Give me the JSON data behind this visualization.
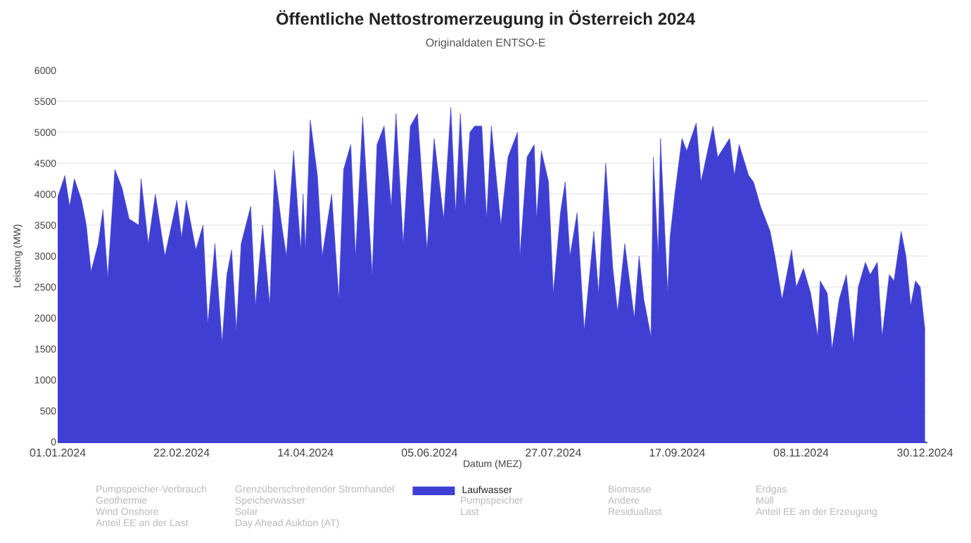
{
  "chart_data": {
    "type": "area",
    "title": "Öffentliche Nettostromerzeugung in Österreich 2024",
    "subtitle": "Originaldaten ENTSO-E",
    "xlabel": "Datum (MEZ)",
    "ylabel": "Leistung (MW)",
    "xlim": [
      "2024-01-01",
      "2024-12-31"
    ],
    "xticks": [
      {
        "value": "2024-01-01",
        "label": "01.01.2024"
      },
      {
        "value": "2024-02-22",
        "label": "22.02.2024"
      },
      {
        "value": "2024-04-14",
        "label": "14.04.2024"
      },
      {
        "value": "2024-06-05",
        "label": "05.06.2024"
      },
      {
        "value": "2024-07-27",
        "label": "27.07.2024"
      },
      {
        "value": "2024-09-17",
        "label": "17.09.2024"
      },
      {
        "value": "2024-11-08",
        "label": "08.11.2024"
      },
      {
        "value": "2024-12-30",
        "label": "30.12.2024"
      }
    ],
    "ylim": [
      0,
      6000
    ],
    "yticks": [
      0,
      500,
      1000,
      1500,
      2000,
      2500,
      3000,
      3500,
      4000,
      4500,
      5000,
      5500,
      6000
    ],
    "grid": "y",
    "legend": "bottom",
    "annotations": [
      "Pumpspeicher-Verbrauch",
      "Grenzüberschreitender Stromhandel",
      "Biomasse",
      "Erdgas",
      "Geothermie",
      "Speicherwasser",
      "Pumpspeicher",
      "Andere",
      "Müll",
      "Wind Onshore",
      "Solar",
      "Last",
      "Residuallast",
      "Anteil EE an der Erzeugung",
      "Anteil EE an der Last",
      "Day Ahead Auktion (AT)"
    ],
    "series": [
      {
        "name": "Laufwasser",
        "color": "#3f3fd4",
        "x": [
          "2024-01-01",
          "2024-01-04",
          "2024-01-06",
          "2024-01-08",
          "2024-01-11",
          "2024-01-13",
          "2024-01-15",
          "2024-01-18",
          "2024-01-20",
          "2024-01-22",
          "2024-01-25",
          "2024-01-28",
          "2024-01-31",
          "2024-02-04",
          "2024-02-05",
          "2024-02-08",
          "2024-02-11",
          "2024-02-15",
          "2024-02-20",
          "2024-02-22",
          "2024-02-24",
          "2024-02-28",
          "2024-03-02",
          "2024-03-04",
          "2024-03-07",
          "2024-03-10",
          "2024-03-12",
          "2024-03-14",
          "2024-03-16",
          "2024-03-18",
          "2024-03-22",
          "2024-03-24",
          "2024-03-27",
          "2024-03-30",
          "2024-04-01",
          "2024-04-04",
          "2024-04-06",
          "2024-04-09",
          "2024-04-12",
          "2024-04-13",
          "2024-04-14",
          "2024-04-16",
          "2024-04-19",
          "2024-04-21",
          "2024-04-25",
          "2024-04-28",
          "2024-04-30",
          "2024-05-03",
          "2024-05-05",
          "2024-05-08",
          "2024-05-12",
          "2024-05-14",
          "2024-05-17",
          "2024-05-20",
          "2024-05-22",
          "2024-05-25",
          "2024-05-28",
          "2024-05-31",
          "2024-06-04",
          "2024-06-07",
          "2024-06-11",
          "2024-06-14",
          "2024-06-16",
          "2024-06-18",
          "2024-06-20",
          "2024-06-22",
          "2024-06-24",
          "2024-06-27",
          "2024-06-29",
          "2024-07-01",
          "2024-07-05",
          "2024-07-08",
          "2024-07-12",
          "2024-07-13",
          "2024-07-16",
          "2024-07-19",
          "2024-07-20",
          "2024-07-22",
          "2024-07-25",
          "2024-07-27",
          "2024-07-30",
          "2024-08-01",
          "2024-08-03",
          "2024-08-06",
          "2024-08-09",
          "2024-08-13",
          "2024-08-15",
          "2024-08-18",
          "2024-08-21",
          "2024-08-23",
          "2024-08-26",
          "2024-08-30",
          "2024-09-01",
          "2024-09-03",
          "2024-09-06",
          "2024-09-07",
          "2024-09-09",
          "2024-09-10",
          "2024-09-13",
          "2024-09-14",
          "2024-09-16",
          "2024-09-19",
          "2024-09-21",
          "2024-09-25",
          "2024-09-27",
          "2024-10-02",
          "2024-10-04",
          "2024-10-09",
          "2024-10-11",
          "2024-10-13",
          "2024-10-17",
          "2024-10-19",
          "2024-10-22",
          "2024-10-26",
          "2024-10-28",
          "2024-10-31",
          "2024-11-04",
          "2024-11-06",
          "2024-11-09",
          "2024-11-12",
          "2024-11-15",
          "2024-11-16",
          "2024-11-19",
          "2024-11-21",
          "2024-11-24",
          "2024-11-27",
          "2024-11-30",
          "2024-12-02",
          "2024-12-05",
          "2024-12-07",
          "2024-12-10",
          "2024-12-12",
          "2024-12-15",
          "2024-12-17",
          "2024-12-20",
          "2024-12-22",
          "2024-12-24",
          "2024-12-26",
          "2024-12-28",
          "2024-12-30"
        ],
        "values": [
          3950,
          4300,
          3800,
          4250,
          3900,
          3500,
          2750,
          3200,
          3750,
          2650,
          4400,
          4100,
          3600,
          3500,
          4250,
          3200,
          4000,
          3000,
          3900,
          3300,
          3900,
          3100,
          3500,
          1900,
          3200,
          1600,
          2700,
          3100,
          1800,
          3200,
          3800,
          2200,
          3500,
          2200,
          4400,
          3500,
          3000,
          4700,
          3100,
          4000,
          3100,
          5200,
          4300,
          3000,
          4000,
          2300,
          4400,
          4800,
          3000,
          5250,
          2700,
          4800,
          5100,
          3800,
          5300,
          3200,
          5100,
          5300,
          3100,
          4900,
          3600,
          5400,
          3700,
          5300,
          3800,
          5000,
          5100,
          5100,
          3600,
          5100,
          3500,
          4600,
          5000,
          3000,
          4600,
          4800,
          3600,
          4700,
          4200,
          2400,
          3700,
          4200,
          3000,
          3700,
          1800,
          3400,
          2400,
          4500,
          2800,
          2100,
          3200,
          2000,
          3000,
          2300,
          1700,
          4600,
          3000,
          4900,
          2400,
          3300,
          4000,
          4900,
          4700,
          5150,
          4200,
          5100,
          4600,
          4900,
          4300,
          4800,
          4300,
          4200,
          3800,
          3400,
          3000,
          2300,
          3100,
          2500,
          2800,
          2400,
          1700,
          2600,
          2400,
          1500,
          2300,
          2700,
          1600,
          2500,
          2900,
          2700,
          2900,
          1700,
          2700,
          2600,
          3400,
          3000,
          2200,
          2600,
          2500,
          1800
        ]
      }
    ]
  }
}
